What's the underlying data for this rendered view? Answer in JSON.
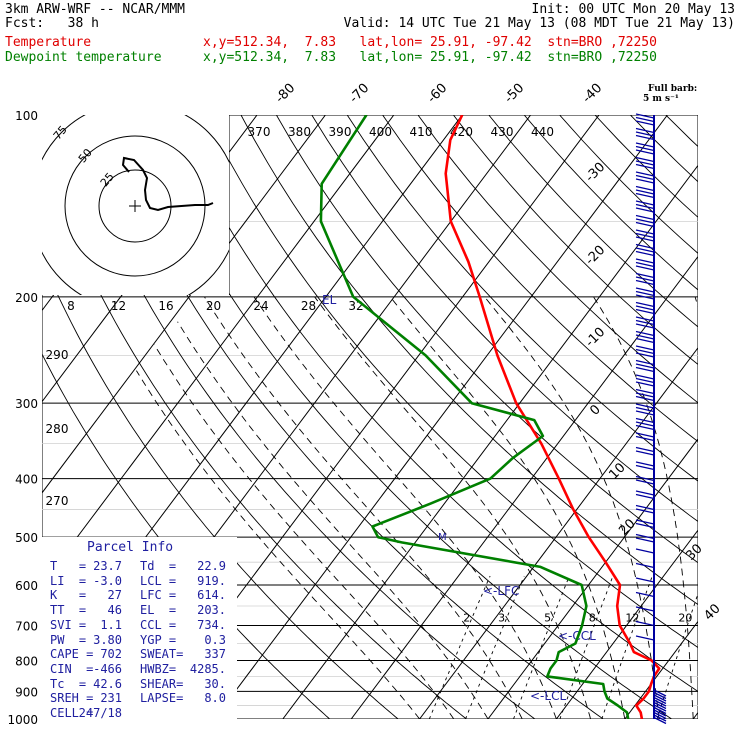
{
  "header": {
    "line1_left": "3km ARW-WRF -- NCAR/MMM",
    "line1_right": "Init: 00 UTC Mon 20 May 13",
    "line2_left": "Fcst:   38 h",
    "line2_right": "Valid: 14 UTC Tue 21 May 13 (08 MDT Tue 21 May 13)",
    "temp_label": "Temperature",
    "temp_info": "x,y=512.34,  7.83   lat,lon= 25.91, -97.42  stn=BRO ,72250",
    "dew_label": "Dewpoint temperature",
    "dew_info": "x,y=512.34,  7.83   lat,lon= 25.91, -97.42  stn=BRO ,72250",
    "barb_legend_1": "Full barb:",
    "barb_legend_2": "5 m s⁻¹"
  },
  "colors": {
    "temperature": "#ff0000",
    "dewpoint": "#008000",
    "parcel_text": "#2020a0",
    "wind": "#0000a0",
    "grid": "#000000"
  },
  "parcel_info": {
    "title": "Parcel Info",
    "rows": [
      [
        "T   =",
        "23.7",
        "Td  =",
        "22.9"
      ],
      [
        "LI  =",
        "-3.0",
        "LCL =",
        "919."
      ],
      [
        "K   =",
        "27",
        "LFC =",
        "614."
      ],
      [
        "TT  =",
        "46",
        "EL  =",
        "203."
      ],
      [
        "SVI =",
        "1.1",
        "CCL =",
        "734."
      ],
      [
        "PW  =",
        "3.80",
        "YGP =",
        "0.3"
      ],
      [
        "CAPE =",
        "702",
        "SWEAT=",
        "337"
      ],
      [
        "CIN  =",
        "-466",
        "HWBZ=",
        "4285."
      ],
      [
        "Tc  =",
        "42.6",
        "SHEAR=",
        "30."
      ],
      [
        "SREH =",
        "231",
        "LAPSE=",
        "8.0"
      ],
      [
        "CELL =",
        "247/18",
        "",
        ""
      ]
    ]
  },
  "chart_data": {
    "type": "line",
    "subtype": "skew-T log-p",
    "y_axis": {
      "scale": "log",
      "unit": "hPa",
      "range": [
        1000,
        100
      ],
      "ticks": [
        100,
        200,
        300,
        400,
        500,
        600,
        700,
        800,
        900,
        1000
      ]
    },
    "isotherm_labels": [
      "-80",
      "-70",
      "-60",
      "-50",
      "-40",
      "-30",
      "-20",
      "-10",
      "0",
      "10",
      "20",
      "30",
      "40"
    ],
    "theta_labels": [
      "370",
      "380",
      "390",
      "400",
      "410",
      "420",
      "430",
      "440"
    ],
    "theta_side_labels": [
      "290",
      "280",
      "270"
    ],
    "mixing_ratio_labels": [
      "2",
      "3",
      "5",
      "8",
      "12",
      "20"
    ],
    "series": [
      {
        "name": "Temperature",
        "points": [
          [
            1000,
            22.5
          ],
          [
            975,
            21.6
          ],
          [
            950,
            20.2
          ],
          [
            925,
            20.5
          ],
          [
            900,
            20.5
          ],
          [
            875,
            20.0
          ],
          [
            850,
            19.6
          ],
          [
            825,
            19.5
          ],
          [
            800,
            17.5
          ],
          [
            775,
            14.0
          ],
          [
            750,
            12.5
          ],
          [
            700,
            9.0
          ],
          [
            650,
            6.5
          ],
          [
            600,
            4.6
          ],
          [
            550,
            0.0
          ],
          [
            500,
            -5.2
          ],
          [
            450,
            -10.5
          ],
          [
            400,
            -16.0
          ],
          [
            350,
            -22.4
          ],
          [
            300,
            -30.5
          ],
          [
            250,
            -38.5
          ],
          [
            200,
            -47.5
          ],
          [
            175,
            -53.0
          ],
          [
            150,
            -60.0
          ],
          [
            125,
            -66.0
          ],
          [
            110,
            -69.0
          ],
          [
            100,
            -70.0
          ]
        ]
      },
      {
        "name": "Dewpoint temperature",
        "points": [
          [
            1000,
            20.5
          ],
          [
            975,
            19.6
          ],
          [
            950,
            17.5
          ],
          [
            925,
            15.2
          ],
          [
            900,
            14.0
          ],
          [
            875,
            13.0
          ],
          [
            850,
            4.0
          ],
          [
            825,
            3.6
          ],
          [
            800,
            3.6
          ],
          [
            775,
            3.0
          ],
          [
            750,
            4.5
          ],
          [
            700,
            3.5
          ],
          [
            650,
            2.0
          ],
          [
            600,
            -1.0
          ],
          [
            560,
            -9.0
          ],
          [
            510,
            -32.0
          ],
          [
            500,
            -36.0
          ],
          [
            480,
            -38.0
          ],
          [
            440,
            -32.0
          ],
          [
            400,
            -26.0
          ],
          [
            370,
            -25.0
          ],
          [
            340,
            -23.0
          ],
          [
            320,
            -26.0
          ],
          [
            300,
            -37.0
          ],
          [
            250,
            -49.0
          ],
          [
            200,
            -66.0
          ],
          [
            150,
            -79.0
          ],
          [
            130,
            -83.0
          ],
          [
            100,
            -84.0
          ]
        ]
      }
    ],
    "annotations": [
      "EL",
      "<-LFC",
      "<-CCL",
      "<-LCL"
    ],
    "hodograph": {
      "unit": "kts",
      "ring_labels": [
        "25",
        "50",
        "75"
      ],
      "tick_labels": [
        "8",
        "12",
        "16",
        "20",
        "24",
        "28",
        "32"
      ]
    }
  }
}
